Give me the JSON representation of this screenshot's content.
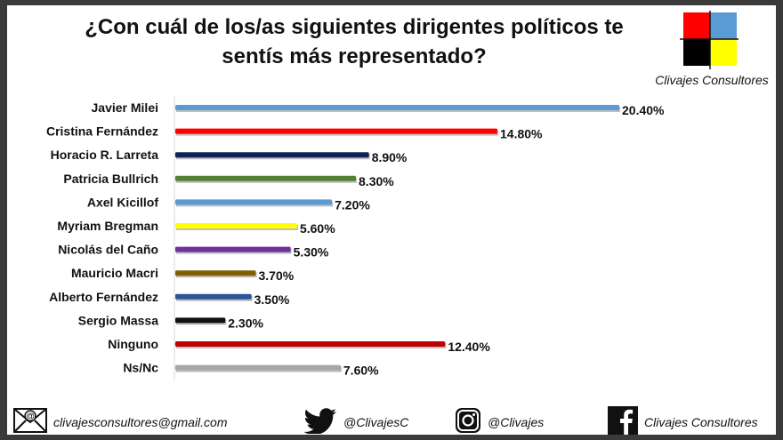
{
  "title_line1": "¿Con cuál de los/as siguientes dirigentes políticos te",
  "title_line2": "sentís más representado?",
  "logo_text": "Clivajes Consultores",
  "colors": {
    "logo_red": "#ff0000",
    "logo_blue": "#5b9bd5",
    "logo_black": "#000000",
    "logo_yellow": "#ffff00"
  },
  "chart_data": {
    "type": "bar",
    "orientation": "horizontal",
    "title": "¿Con cuál de los/as siguientes dirigentes políticos te sentís más representado?",
    "categories": [
      "Javier Milei",
      "Cristina Fernández",
      "Horacio R. Larreta",
      "Patricia Bullrich",
      "Axel Kicillof",
      "Myriam Bregman",
      "Nicolás del Caño",
      "Mauricio Macri",
      "Alberto Fernández",
      "Sergio Massa",
      "Ninguno",
      "Ns/Nc"
    ],
    "values": [
      20.4,
      14.8,
      8.9,
      8.3,
      7.2,
      5.6,
      5.3,
      3.7,
      3.5,
      2.3,
      12.4,
      7.6
    ],
    "value_labels": [
      "20.40%",
      "14.80%",
      "8.90%",
      "8.30%",
      "7.20%",
      "5.60%",
      "5.30%",
      "3.70%",
      "3.50%",
      "2.30%",
      "12.40%",
      "7.60%"
    ],
    "bar_colors": [
      "#5b9bd5",
      "#ff0000",
      "#0d2257",
      "#548235",
      "#5b9bd5",
      "#ffff00",
      "#7030a0",
      "#806000",
      "#2e5597",
      "#111111",
      "#c00000",
      "#a6a6a6"
    ],
    "xlim": [
      0,
      20.4
    ],
    "xlabel": "",
    "ylabel": "",
    "grid": false,
    "legend": "none"
  },
  "footer": {
    "email": "clivajesconsultores@gmail.com",
    "twitter": "@ClivajesC",
    "instagram": "@Clivajes",
    "facebook": "Clivajes Consultores"
  }
}
